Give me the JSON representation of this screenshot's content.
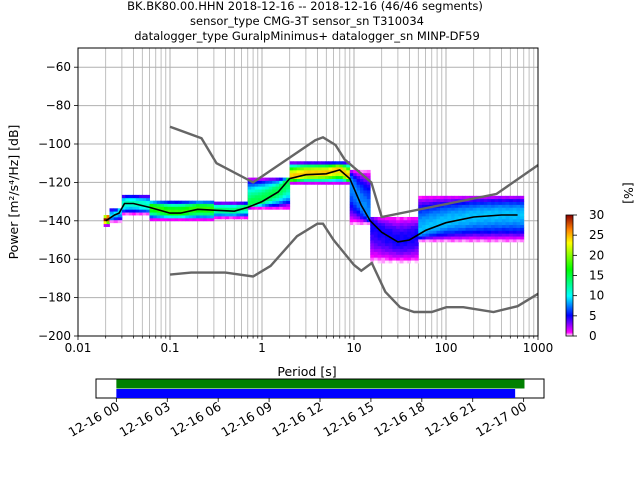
{
  "title_lines": [
    "BK.BK80.00.HHN   2018-12-16 -- 2018-12-16  (46/46 segments)",
    "sensor_type CMG-3T sensor_sn T310034",
    "datalogger_type GuralpMinimus+ datalogger_sn MINP-DF59"
  ],
  "chart_data": [
    {
      "type": "heatmap",
      "xlabel": "Period [s]",
      "ylabel": "Power [m²/s⁴/Hz] [dB]",
      "xscale": "log",
      "xlim": [
        0.01,
        1000
      ],
      "ylim": [
        -200,
        -50
      ],
      "x_ticks": [
        {
          "v": 0.01,
          "label": "0.01"
        },
        {
          "v": 0.1,
          "label": "0.1"
        },
        {
          "v": 1,
          "label": "1"
        },
        {
          "v": 10,
          "label": "10"
        },
        {
          "v": 100,
          "label": "100"
        },
        {
          "v": 1000,
          "label": "1000"
        }
      ],
      "y_ticks": [
        -200,
        -180,
        -160,
        -140,
        -120,
        -100,
        -80,
        -60
      ],
      "grid": true,
      "colorbar": {
        "label": "[%]",
        "ticks": [
          0,
          5,
          10,
          15,
          20,
          25,
          30
        ],
        "range": [
          0,
          30
        ]
      },
      "noise_models": [
        {
          "points": [
            [
              0.1,
              -91
            ],
            [
              0.22,
              -97
            ],
            [
              0.32,
              -110
            ],
            [
              0.8,
              -120
            ],
            [
              3.8,
              -98
            ],
            [
              4.6,
              -96.5
            ],
            [
              6.3,
              -100.5
            ],
            [
              7.9,
              -108
            ],
            [
              15.4,
              -120
            ],
            [
              20,
              -138
            ],
            [
              354.8,
              -126
            ],
            [
              1000,
              -111
            ]
          ]
        },
        {
          "points": [
            [
              0.1,
              -168
            ],
            [
              0.17,
              -167
            ],
            [
              0.4,
              -167
            ],
            [
              0.8,
              -169
            ],
            [
              1.24,
              -163.5
            ],
            [
              2.4,
              -148
            ],
            [
              4,
              -141.5
            ],
            [
              4.6,
              -141.5
            ],
            [
              6,
              -150
            ],
            [
              10,
              -163
            ],
            [
              12,
              -166
            ],
            [
              15.6,
              -162
            ],
            [
              21.9,
              -177
            ],
            [
              31.6,
              -185
            ],
            [
              45,
              -187.5
            ],
            [
              70,
              -187.5
            ],
            [
              101,
              -185
            ],
            [
              154,
              -185
            ],
            [
              328,
              -187.5
            ],
            [
              600,
              -184.5
            ],
            [
              1000,
              -178
            ]
          ]
        }
      ],
      "mode_curve": {
        "points": [
          [
            0.02,
            -140
          ],
          [
            0.025,
            -137
          ],
          [
            0.028,
            -136
          ],
          [
            0.032,
            -131
          ],
          [
            0.04,
            -131
          ],
          [
            0.06,
            -133
          ],
          [
            0.1,
            -136
          ],
          [
            0.13,
            -136
          ],
          [
            0.2,
            -134
          ],
          [
            0.3,
            -134.5
          ],
          [
            0.5,
            -135
          ],
          [
            0.7,
            -133
          ],
          [
            1,
            -130
          ],
          [
            1.5,
            -125
          ],
          [
            2,
            -118
          ],
          [
            3,
            -116
          ],
          [
            5,
            -115.5
          ],
          [
            7,
            -113.5
          ],
          [
            9,
            -118
          ],
          [
            12,
            -132
          ],
          [
            15,
            -140
          ],
          [
            20,
            -146
          ],
          [
            30,
            -151
          ],
          [
            40,
            -150
          ],
          [
            60,
            -145
          ],
          [
            100,
            -141
          ],
          [
            200,
            -138
          ],
          [
            400,
            -137
          ],
          [
            600,
            -137
          ]
        ]
      },
      "density": [
        {
          "x": [
            0.019,
            0.022
          ],
          "y": [
            -143,
            -137
          ],
          "pct": 30
        },
        {
          "x": [
            0.022,
            0.03
          ],
          "y": [
            -141,
            -134
          ],
          "pct": 10
        },
        {
          "x": [
            0.03,
            0.06
          ],
          "y": [
            -137,
            -127
          ],
          "pct": 12
        },
        {
          "x": [
            0.06,
            0.3
          ],
          "y": [
            -140,
            -130
          ],
          "pct": 18
        },
        {
          "x": [
            0.3,
            0.7
          ],
          "y": [
            -139,
            -131
          ],
          "pct": 14
        },
        {
          "x": [
            0.7,
            2
          ],
          "y": [
            -134,
            -118
          ],
          "pct": 15
        },
        {
          "x": [
            2,
            9
          ],
          "y": [
            -121,
            -110
          ],
          "pct": 25
        },
        {
          "x": [
            9,
            15
          ],
          "y": [
            -142,
            -114
          ],
          "pct": 8
        },
        {
          "x": [
            15,
            50
          ],
          "y": [
            -162,
            -138
          ],
          "pct": 5
        },
        {
          "x": [
            50,
            700
          ],
          "y": [
            -151,
            -127
          ],
          "pct": 9
        }
      ]
    },
    {
      "type": "timeline",
      "x_tick_labels": [
        "12-16 00",
        "12-16 03",
        "12-16 06",
        "12-16 09",
        "12-16 12",
        "12-16 15",
        "12-16 18",
        "12-16 21",
        "12-17 00"
      ],
      "x_hours": [
        0,
        3,
        6,
        9,
        12,
        15,
        18,
        21,
        24
      ],
      "xlim_hours": [
        -1.2,
        25.2
      ],
      "bars": [
        {
          "color": "#008000",
          "start_h": 0,
          "end_h": 24.05
        },
        {
          "color": "#0000ff",
          "start_h": 0,
          "end_h": 23.5
        }
      ]
    }
  ]
}
